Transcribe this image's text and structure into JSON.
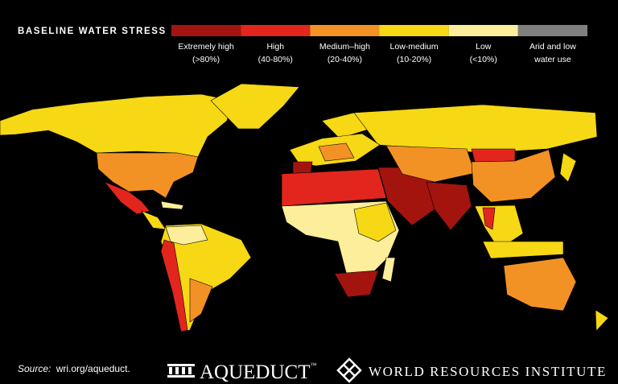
{
  "title": "BASELINE WATER STRESS",
  "legend": [
    {
      "label": "Extremely high",
      "range": "(>80%)",
      "color": "#a3140f"
    },
    {
      "label": "High",
      "range": "(40-80%)",
      "color": "#e2261d"
    },
    {
      "label": "Medium–high",
      "range": "(20-40%)",
      "color": "#f39224"
    },
    {
      "label": "Low-medium",
      "range": "(10-20%)",
      "color": "#f6d814"
    },
    {
      "label": "Low",
      "range": "(<10%)",
      "color": "#fcee9a"
    },
    {
      "label": "Arid and low",
      "range": "water use",
      "color": "#7f7f7f"
    }
  ],
  "source": {
    "prefix": "Source:",
    "text": "wri.org/aqueduct."
  },
  "logos": {
    "aqueduct": "AQUEDUCT",
    "trademark": "™",
    "wri": "WORLD RESOURCES INSTITUTE"
  }
}
